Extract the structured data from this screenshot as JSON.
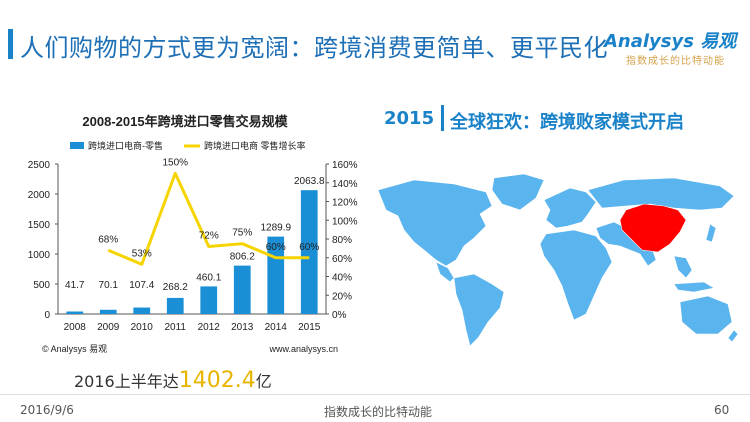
{
  "page": {
    "title": "人们购物的方式更为宽阔：跨境消费更简单、更平民化",
    "logo_main": "Analysys 易观",
    "logo_sub": "指数成长的比特动能"
  },
  "chart_data": {
    "type": "bar",
    "title": "2008-2015年跨境进口零售交易规模",
    "categories": [
      "2008",
      "2009",
      "2010",
      "2011",
      "2012",
      "2013",
      "2014",
      "2015"
    ],
    "series": [
      {
        "name": "跨境进口电商-零售",
        "type": "bar",
        "values": [
          41.7,
          70.1,
          107.4,
          268.2,
          460.1,
          806.2,
          1289.9,
          2063.8
        ],
        "labels": [
          "41.7",
          "70.1",
          "107.4",
          "268.2",
          "460.1",
          "806.2",
          "1289.9",
          "2063.8"
        ]
      },
      {
        "name": "跨境进口电商 零售增长率",
        "type": "line",
        "axis": "right",
        "values": [
          null,
          68,
          53,
          150,
          72,
          75,
          60,
          60
        ],
        "labels": [
          "",
          "68%",
          "53%",
          "150%",
          "72%",
          "75%",
          "60%",
          "60%"
        ]
      }
    ],
    "ylim": [
      0,
      2500
    ],
    "yticks": [
      "0",
      "500",
      "1000",
      "1500",
      "2000",
      "2500"
    ],
    "y2lim": [
      0,
      160
    ],
    "y2ticks": [
      "0%",
      "20%",
      "40%",
      "60%",
      "80%",
      "100%",
      "120%",
      "140%",
      "160%"
    ],
    "colors": {
      "bar": "#1a8fd6",
      "line": "#f5d400"
    },
    "grid": false,
    "legend": "top",
    "source_left": "© Analysys 易观",
    "source_right": "www.analysys.cn"
  },
  "map_panel": {
    "year": "2015",
    "title": "全球狂欢：跨境败家模式开启",
    "colors": {
      "world": "#5ab4ee",
      "china": "#ff0000",
      "border": "#ffffff"
    }
  },
  "summary": {
    "prefix": "2016上半年达",
    "value": "1402.4",
    "suffix": "亿"
  },
  "footer": {
    "date": "2016/9/6",
    "center": "指数成长的比特动能",
    "page": "60"
  }
}
